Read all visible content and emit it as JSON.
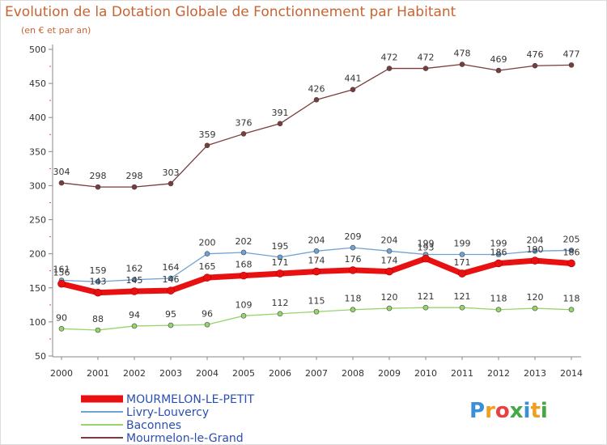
{
  "chart_data": {
    "type": "line",
    "title": "Evolution de la Dotation Globale de Fonctionnement par Habitant",
    "subtitle": "(en € et par an)",
    "categories": [
      "2000",
      "2001",
      "2002",
      "2003",
      "2004",
      "2005",
      "2006",
      "2007",
      "2008",
      "2009",
      "2010",
      "2011",
      "2012",
      "2013",
      "2014"
    ],
    "ylim": [
      50,
      500
    ],
    "yticks": [
      50,
      100,
      150,
      200,
      250,
      300,
      350,
      400,
      450,
      500
    ],
    "grid": false,
    "legend_position": "bottom-left",
    "series": [
      {
        "name": "Mourmelon-le-Grand",
        "color": "#7a3b3b",
        "values": [
          304,
          298,
          298,
          303,
          359,
          376,
          391,
          426,
          441,
          472,
          472,
          478,
          469,
          476,
          477
        ]
      },
      {
        "name": "Livry-Louvercy",
        "color": "#6fa3d6",
        "values": [
          161,
          159,
          162,
          164,
          200,
          202,
          195,
          204,
          209,
          204,
          199,
          199,
          199,
          204,
          205
        ]
      },
      {
        "name": "Baconnes",
        "color": "#94d66b",
        "values": [
          90,
          88,
          94,
          95,
          96,
          109,
          112,
          115,
          118,
          120,
          121,
          121,
          118,
          120,
          118
        ]
      },
      {
        "name": "MOURMELON-LE-PETIT",
        "color": "#e81010",
        "values": [
          156,
          143,
          145,
          146,
          165,
          168,
          171,
          174,
          176,
          174,
          193,
          171,
          186,
          190,
          186
        ]
      }
    ],
    "legend_order": [
      "MOURMELON-LE-PETIT",
      "Livry-Louvercy",
      "Baconnes",
      "Mourmelon-le-Grand"
    ]
  },
  "logo": {
    "letters": [
      "P",
      "r",
      "o",
      "x",
      "i",
      "t",
      "i"
    ],
    "colors": [
      "#3a8fd8",
      "#f0a020",
      "#e84040",
      "#44a844",
      "#3a8fd8",
      "#f0a020",
      "#44a844"
    ]
  },
  "colors": {
    "background": "#ffffff",
    "title": "#c86432",
    "frame": "#dcdcdc"
  }
}
